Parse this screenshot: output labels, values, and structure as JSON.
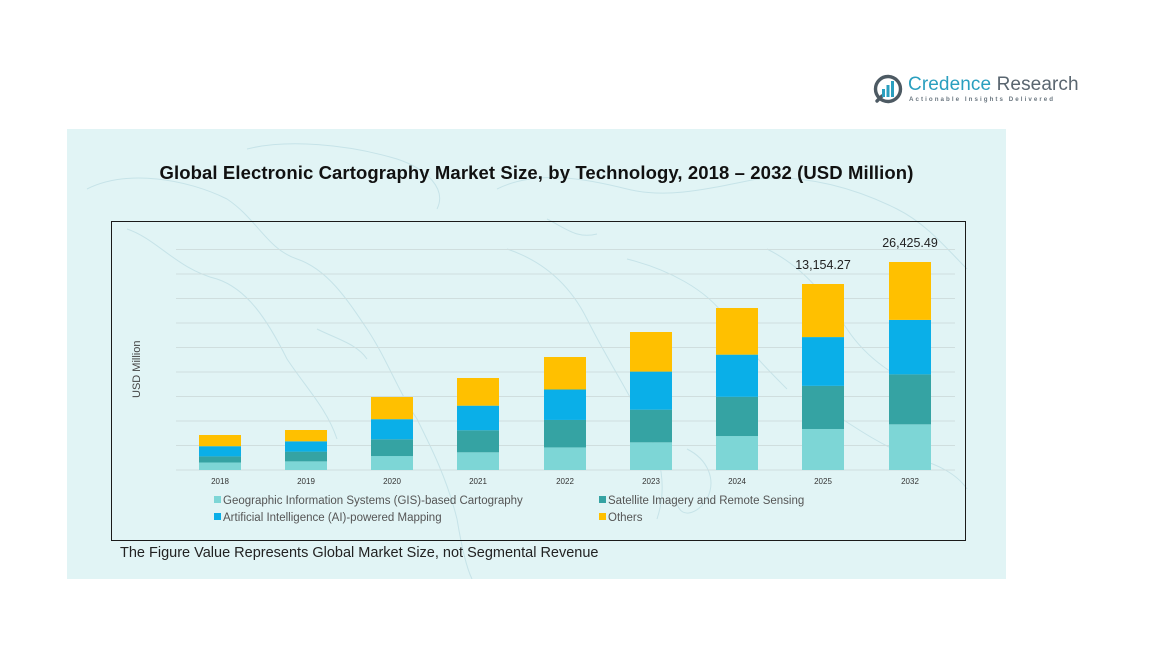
{
  "brand": {
    "name_part1": "Credence",
    "name_part2": "Research",
    "tagline": "Actionable Insights Delivered",
    "colors": {
      "primary": "#2a9fbf",
      "secondary": "#5a6670"
    }
  },
  "footnote": "The Figure Value Represents Global Market Size, not Segmental Revenue",
  "chart_data": {
    "type": "bar",
    "stacked": true,
    "title": "Global Electronic Cartography Market Size, by Technology, 2018 – 2032 (USD Million)",
    "xlabel": "",
    "ylabel": "USD Million",
    "grid": true,
    "legend_position": "bottom",
    "categories": [
      "2018",
      "2019",
      "2020",
      "2021",
      "2022",
      "2023",
      "2024",
      "2025",
      "2032"
    ],
    "series": [
      {
        "name": "Geographic Information Systems (GIS)-based Cartography",
        "color": "#7dd6d6",
        "values": [
          590,
          670,
          1080,
          1380,
          1750,
          2200,
          2650,
          2900,
          5800
        ]
      },
      {
        "name": "Satellite Imagery and Remote Sensing",
        "color": "#35a3a3",
        "values": [
          480,
          760,
          1300,
          1720,
          2130,
          2600,
          3060,
          3050,
          6350
        ]
      },
      {
        "name": "Artificial Intelligence (AI)-powered Mapping",
        "color": "#0aafe8",
        "values": [
          800,
          800,
          1560,
          1920,
          2360,
          3030,
          3290,
          3450,
          6920
        ]
      },
      {
        "name": "Others",
        "color": "#ffc000",
        "values": [
          880,
          880,
          1720,
          2160,
          2520,
          3150,
          3640,
          3754.27,
          7355.49
        ]
      }
    ],
    "totals_labeled": {
      "2025": "13,154.27",
      "2032": "26,425.49"
    }
  }
}
